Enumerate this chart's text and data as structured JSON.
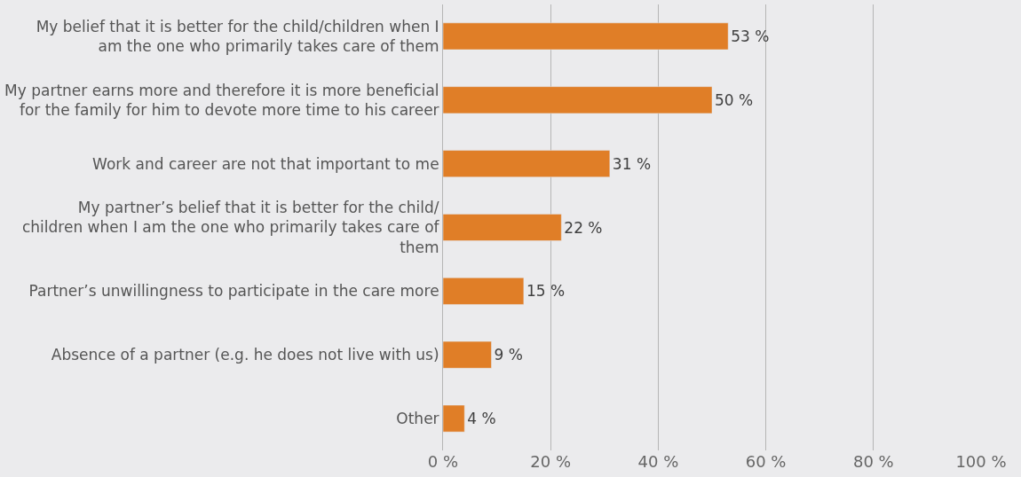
{
  "chart_data": {
    "type": "bar",
    "orientation": "horizontal",
    "categories": [
      "My belief that it is better for the child/children when I am the one who primarily takes care of them",
      "My partner earns more and therefore it is more beneficial for the family for him to devote more time to his career",
      "Work and career are not that important to me",
      "My partner’s belief that it is better for the child/ children when I am the one who primarily takes care of them",
      "Partner’s unwillingness to participate in the care more",
      "Absence of a partner (e.g. he does not live with us)",
      "Other"
    ],
    "values": [
      53,
      50,
      31,
      22,
      15,
      9,
      4
    ],
    "value_labels": [
      "53 %",
      "50 %",
      "31 %",
      "22 %",
      "15 %",
      "9 %",
      "4 %"
    ],
    "color": "#e07e27",
    "xlim": [
      0,
      100
    ],
    "xticks": [
      {
        "value": 0,
        "label": "0 %"
      },
      {
        "value": 20,
        "label": "20 %"
      },
      {
        "value": 40,
        "label": "40 %"
      },
      {
        "value": 60,
        "label": "60 %"
      },
      {
        "value": 80,
        "label": "80 %"
      },
      {
        "value": 100,
        "label": "100 %"
      }
    ],
    "grid": "x",
    "legend": false
  }
}
